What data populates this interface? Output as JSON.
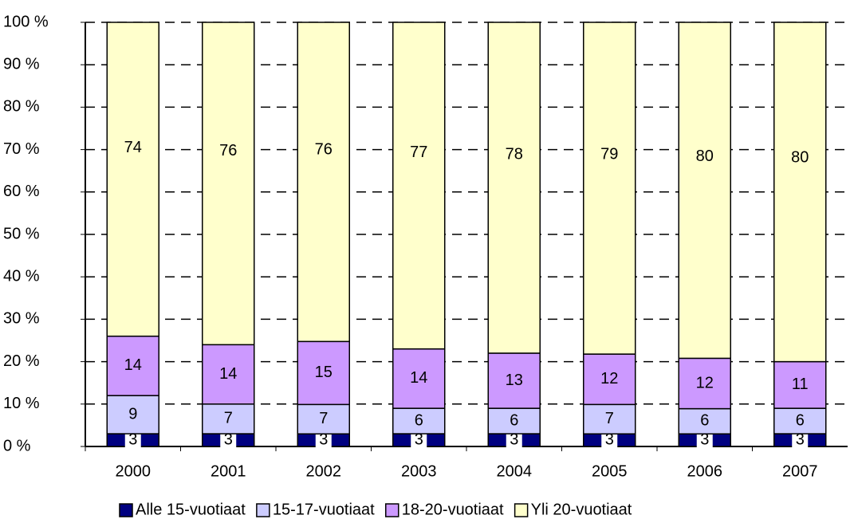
{
  "chart_data": {
    "type": "stacked_percent",
    "categories": [
      "2000",
      "2001",
      "2002",
      "2003",
      "2004",
      "2005",
      "2006",
      "2007"
    ],
    "series": [
      {
        "name": "Alle 15-vuotiaat",
        "color": "#000080",
        "values": [
          3,
          3,
          3,
          3,
          3,
          3,
          3,
          3
        ]
      },
      {
        "name": "15-17-vuotiaat",
        "color": "#ccccff",
        "values": [
          9,
          7,
          7,
          6,
          6,
          7,
          6,
          6
        ]
      },
      {
        "name": "18-20-vuotiaat",
        "color": "#cc99ff",
        "values": [
          14,
          14,
          15,
          14,
          13,
          12,
          12,
          11
        ]
      },
      {
        "name": "Yli 20-vuotiaat",
        "color": "#ffffcc",
        "values": [
          74,
          76,
          76,
          77,
          78,
          79,
          80,
          80
        ]
      }
    ],
    "ylim": [
      0,
      100
    ],
    "yticks": [
      {
        "value": 0,
        "label": "0 %"
      },
      {
        "value": 10,
        "label": "10 %"
      },
      {
        "value": 20,
        "label": "20 %"
      },
      {
        "value": 30,
        "label": "30 %"
      },
      {
        "value": 40,
        "label": "40 %"
      },
      {
        "value": 50,
        "label": "50 %"
      },
      {
        "value": 60,
        "label": "60 %"
      },
      {
        "value": 70,
        "label": "70 %"
      },
      {
        "value": 80,
        "label": "80 %"
      },
      {
        "value": 90,
        "label": "90 %"
      },
      {
        "value": 100,
        "label": "100 %"
      }
    ],
    "grid": true,
    "legend": "bottom"
  }
}
